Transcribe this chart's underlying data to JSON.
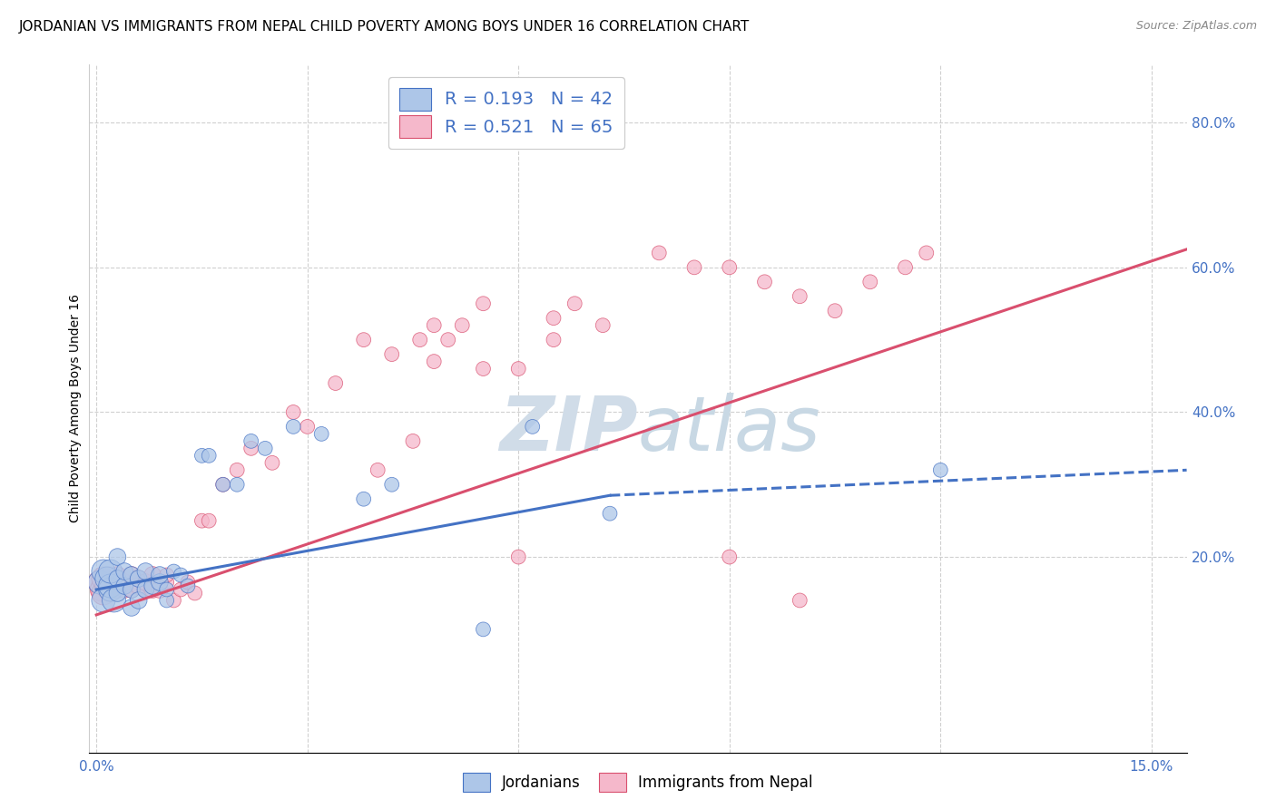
{
  "title": "JORDANIAN VS IMMIGRANTS FROM NEPAL CHILD POVERTY AMONG BOYS UNDER 16 CORRELATION CHART",
  "source": "Source: ZipAtlas.com",
  "ylabel": "Child Poverty Among Boys Under 16",
  "x_ticks": [
    0.0,
    0.03,
    0.06,
    0.09,
    0.12,
    0.15
  ],
  "x_tick_labels": [
    "0.0%",
    "",
    "",
    "",
    "",
    "15.0%"
  ],
  "y_ticks": [
    0.0,
    0.2,
    0.4,
    0.6,
    0.8
  ],
  "y_tick_labels": [
    "",
    "20.0%",
    "40.0%",
    "60.0%",
    "80.0%"
  ],
  "xlim": [
    -0.001,
    0.155
  ],
  "ylim": [
    -0.07,
    0.88
  ],
  "jordanians_color": "#adc6e8",
  "nepal_color": "#f5b8cb",
  "trendline_jordan_color": "#4472c4",
  "trendline_nepal_color": "#d94f6e",
  "legend_jordan_label": "R = 0.193   N = 42",
  "legend_nepal_label": "R = 0.521   N = 65",
  "bottom_legend_jordan": "Jordanians",
  "bottom_legend_nepal": "Immigrants from Nepal",
  "watermark_zip": "ZIP",
  "watermark_atlas": "atlas",
  "jordan_R": 0.193,
  "nepal_R": 0.521,
  "background_color": "#ffffff",
  "grid_color": "#d0d0d0",
  "title_fontsize": 11,
  "tick_fontsize": 11,
  "watermark_color": "#d0dce8",
  "watermark_fontsize": 60,
  "jordanians_x": [
    0.0005,
    0.001,
    0.001,
    0.0015,
    0.002,
    0.002,
    0.002,
    0.0025,
    0.003,
    0.003,
    0.003,
    0.004,
    0.004,
    0.005,
    0.005,
    0.005,
    0.006,
    0.006,
    0.007,
    0.007,
    0.008,
    0.009,
    0.009,
    0.01,
    0.01,
    0.011,
    0.012,
    0.013,
    0.015,
    0.016,
    0.018,
    0.02,
    0.022,
    0.024,
    0.028,
    0.032,
    0.038,
    0.042,
    0.055,
    0.062,
    0.073,
    0.12
  ],
  "jordanians_y": [
    0.165,
    0.14,
    0.18,
    0.17,
    0.155,
    0.16,
    0.18,
    0.14,
    0.15,
    0.17,
    0.2,
    0.16,
    0.18,
    0.13,
    0.155,
    0.175,
    0.14,
    0.17,
    0.155,
    0.18,
    0.16,
    0.165,
    0.175,
    0.14,
    0.155,
    0.18,
    0.175,
    0.16,
    0.34,
    0.34,
    0.3,
    0.3,
    0.36,
    0.35,
    0.38,
    0.37,
    0.28,
    0.3,
    0.1,
    0.38,
    0.26,
    0.32
  ],
  "nepal_x": [
    0.0005,
    0.0008,
    0.001,
    0.001,
    0.0015,
    0.002,
    0.002,
    0.002,
    0.003,
    0.003,
    0.003,
    0.004,
    0.004,
    0.005,
    0.005,
    0.006,
    0.006,
    0.007,
    0.007,
    0.008,
    0.008,
    0.009,
    0.01,
    0.01,
    0.011,
    0.012,
    0.013,
    0.014,
    0.015,
    0.016,
    0.018,
    0.02,
    0.022,
    0.025,
    0.028,
    0.03,
    0.034,
    0.038,
    0.042,
    0.046,
    0.048,
    0.05,
    0.055,
    0.06,
    0.065,
    0.068,
    0.072,
    0.08,
    0.085,
    0.09,
    0.095,
    0.1,
    0.105,
    0.11,
    0.115,
    0.118,
    0.048,
    0.052,
    0.06,
    0.065,
    0.04,
    0.045,
    0.055,
    0.09,
    0.1
  ],
  "nepal_y": [
    0.165,
    0.155,
    0.15,
    0.17,
    0.16,
    0.155,
    0.165,
    0.17,
    0.155,
    0.16,
    0.175,
    0.155,
    0.165,
    0.155,
    0.175,
    0.16,
    0.17,
    0.155,
    0.165,
    0.155,
    0.175,
    0.155,
    0.165,
    0.175,
    0.14,
    0.155,
    0.165,
    0.15,
    0.25,
    0.25,
    0.3,
    0.32,
    0.35,
    0.33,
    0.4,
    0.38,
    0.44,
    0.5,
    0.48,
    0.5,
    0.52,
    0.5,
    0.55,
    0.2,
    0.53,
    0.55,
    0.52,
    0.62,
    0.6,
    0.6,
    0.58,
    0.56,
    0.54,
    0.58,
    0.6,
    0.62,
    0.47,
    0.52,
    0.46,
    0.5,
    0.32,
    0.36,
    0.46,
    0.2,
    0.14
  ],
  "jordan_trendline_x0": 0.0,
  "jordan_trendline_y0": 0.155,
  "jordan_trendline_x1": 0.073,
  "jordan_trendline_y1": 0.285,
  "jordan_trendline_xdash": 0.155,
  "jordan_trendline_ydash": 0.32,
  "nepal_trendline_x0": 0.0,
  "nepal_trendline_y0": 0.12,
  "nepal_trendline_x1": 0.155,
  "nepal_trendline_y1": 0.625
}
